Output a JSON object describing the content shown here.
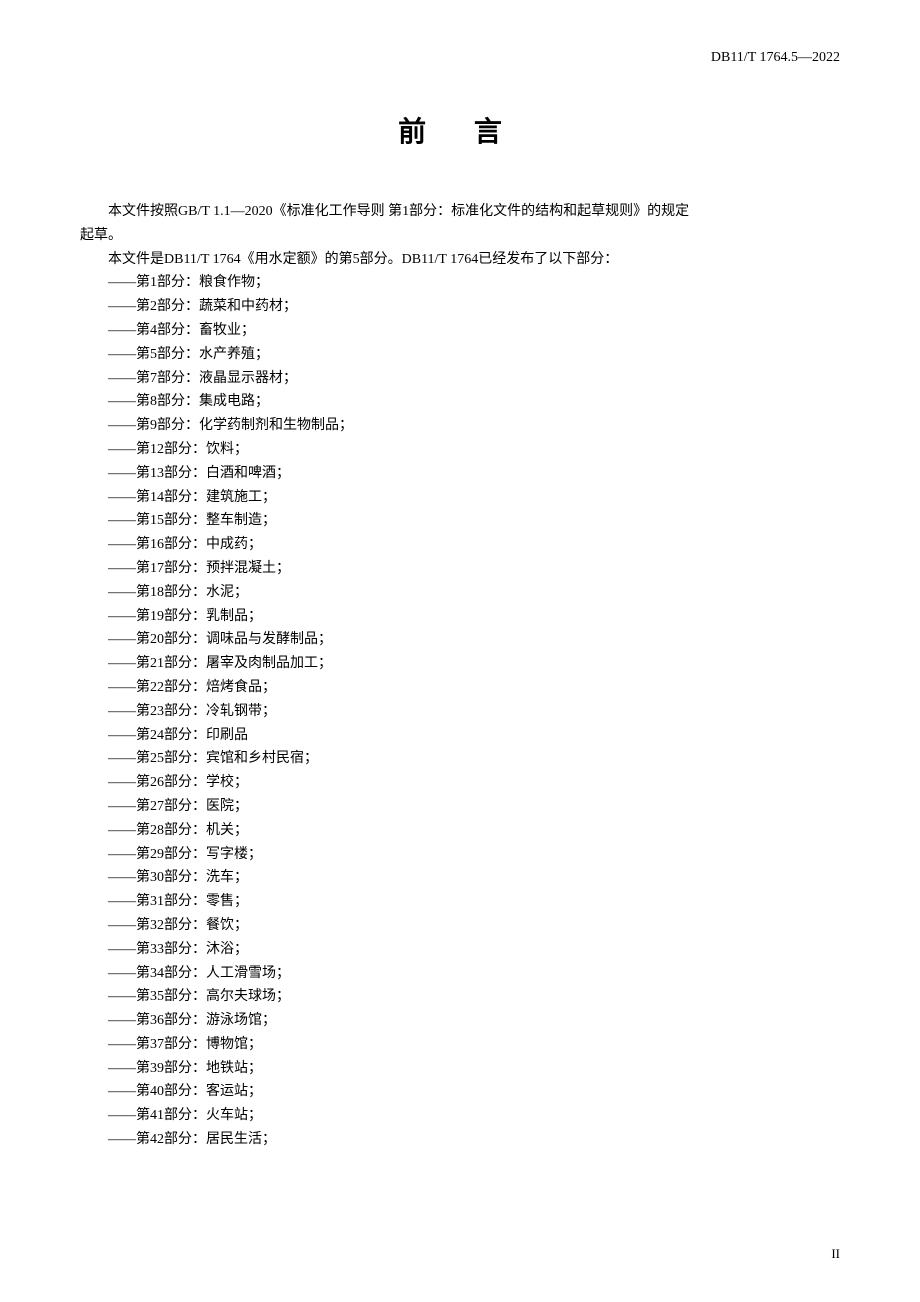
{
  "header": {
    "standard_code": "DB11/T 1764.5—2022"
  },
  "title": "前  言",
  "intro": {
    "para1": "本文件按照GB/T 1.1—2020《标准化工作导则  第1部分：标准化文件的结构和起草规则》的规定",
    "para1_cont": "起草。",
    "para2": "本文件是DB11/T 1764《用水定额》的第5部分。DB11/T 1764已经发布了以下部分："
  },
  "parts": [
    "——第1部分：粮食作物；",
    "——第2部分：蔬菜和中药材；",
    "——第4部分：畜牧业；",
    "——第5部分：水产养殖；",
    "——第7部分：液晶显示器材；",
    "——第8部分：集成电路；",
    "——第9部分：化学药制剂和生物制品；",
    "——第12部分：饮料；",
    "——第13部分：白酒和啤酒；",
    "——第14部分：建筑施工；",
    "——第15部分：整车制造；",
    "——第16部分：中成药；",
    "——第17部分：预拌混凝土；",
    "——第18部分：水泥；",
    "——第19部分：乳制品；",
    "——第20部分：调味品与发酵制品；",
    "——第21部分：屠宰及肉制品加工；",
    "——第22部分：焙烤食品；",
    "——第23部分：冷轧钢带；",
    "——第24部分：印刷品",
    "——第25部分：宾馆和乡村民宿；",
    "——第26部分：学校；",
    "——第27部分：医院；",
    "——第28部分：机关；",
    "——第29部分：写字楼；",
    "——第30部分：洗车；",
    "——第31部分：零售；",
    "——第32部分：餐饮；",
    "——第33部分：沐浴；",
    "——第34部分：人工滑雪场；",
    "——第35部分：高尔夫球场；",
    "——第36部分：游泳场馆；",
    "——第37部分：博物馆；",
    "——第39部分：地铁站；",
    "——第40部分：客运站；",
    "——第41部分：火车站；",
    "——第42部分：居民生活；"
  ],
  "page_number": "II"
}
